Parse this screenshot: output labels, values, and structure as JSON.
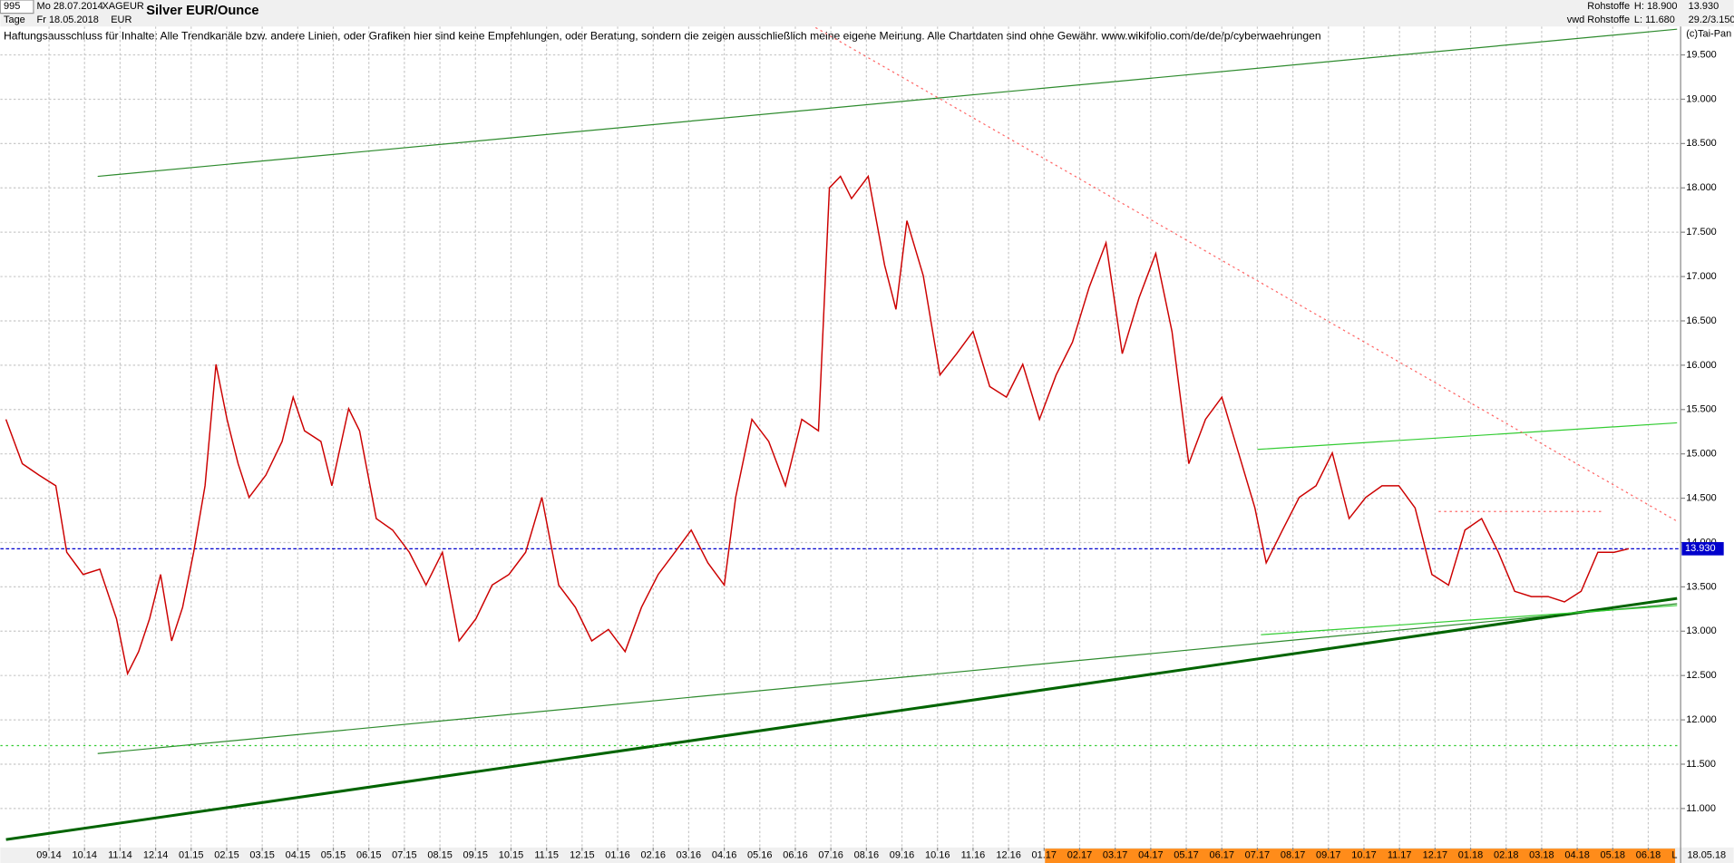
{
  "header": {
    "id": "995",
    "period": "Tage",
    "date_from": "Mo 28.07.2014",
    "date_to": "Fr 18.05.2018",
    "symbol": "XAGEUR",
    "currency": "EUR",
    "group": "Rohstoffe",
    "source": "vwd Rohstoffe",
    "high": "H: 18.900",
    "low": "L: 11.680",
    "last": "13.930",
    "info": "29.2/3.150",
    "copyright": "(c)Tai-Pan",
    "end_date": "18.05.18",
    "scale": "L"
  },
  "chart_data": {
    "type": "line",
    "title": "Silver EUR/Ounce",
    "annotation": "Haftungsausschluss für Inhalte: Alle Trendkanäle bzw. andere Linien, oder Grafiken hier sind keine Empfehlungen, oder Beratung, sondern die zeigen ausschließlich meine eigene Meinung. Alle Chartdaten sind ohne Gewähr.  www.wikifolio.com/de/de/p/cyberwaehrungen",
    "color": "#cc0000",
    "x": [
      -1.21,
      -0.75,
      -0.28,
      0.19,
      0.5,
      0.96,
      1.43,
      1.9,
      2.21,
      2.52,
      2.83,
      3.14,
      3.45,
      3.76,
      4.07,
      4.39,
      4.7,
      5.01,
      5.32,
      5.63,
      6.1,
      6.56,
      6.87,
      7.19,
      7.65,
      7.96,
      8.43,
      8.74,
      9.21,
      9.67,
      10.14,
      10.61,
      11.07,
      11.54,
      12.01,
      12.47,
      12.94,
      13.41,
      13.87,
      14.34,
      14.81,
      15.27,
      15.74,
      16.21,
      16.67,
      17.14,
      17.61,
      18.07,
      18.54,
      19.0,
      19.32,
      19.78,
      20.25,
      20.72,
      21.18,
      21.65,
      21.96,
      22.27,
      22.58,
      23.05,
      23.51,
      23.83,
      24.14,
      24.6,
      25.07,
      25.54,
      26.0,
      26.47,
      26.94,
      27.4,
      27.87,
      28.34,
      28.8,
      29.27,
      29.74,
      30.2,
      30.67,
      31.14,
      31.6,
      32.07,
      32.54,
      33.0,
      33.47,
      33.93,
      34.25,
      34.71,
      35.18,
      35.65,
      36.11,
      36.58,
      37.05,
      37.51,
      37.98,
      38.44,
      38.91,
      39.38,
      39.84,
      40.31,
      40.78,
      41.24,
      41.71,
      42.18,
      42.64,
      43.11,
      43.58,
      44.04,
      44.45
    ],
    "values": [
      15.39,
      14.89,
      14.76,
      14.64,
      13.89,
      13.64,
      13.7,
      13.14,
      12.52,
      12.77,
      13.14,
      13.64,
      12.89,
      13.27,
      13.89,
      14.64,
      16.01,
      15.39,
      14.89,
      14.51,
      14.76,
      15.14,
      15.64,
      15.26,
      15.14,
      14.64,
      15.51,
      15.26,
      14.27,
      14.14,
      13.89,
      13.52,
      13.89,
      12.89,
      13.14,
      13.52,
      13.64,
      13.89,
      14.51,
      13.52,
      13.27,
      12.89,
      13.02,
      12.77,
      13.27,
      13.64,
      13.89,
      14.14,
      13.77,
      13.52,
      14.51,
      15.39,
      15.14,
      14.64,
      15.39,
      15.26,
      18.0,
      18.13,
      17.88,
      18.13,
      17.13,
      16.63,
      17.63,
      17.01,
      15.89,
      16.13,
      16.38,
      15.76,
      15.64,
      16.01,
      15.39,
      15.89,
      16.26,
      16.88,
      17.38,
      16.13,
      16.76,
      17.26,
      16.38,
      14.89,
      15.39,
      15.64,
      15.01,
      14.39,
      13.77,
      14.14,
      14.51,
      14.64,
      15.01,
      14.27,
      14.51,
      14.64,
      14.64,
      14.39,
      13.64,
      13.52,
      14.14,
      14.27,
      13.89,
      13.45,
      13.39,
      13.39,
      13.33,
      13.45,
      13.89,
      13.89,
      13.93
    ],
    "last": {
      "value": 13.93,
      "label": "13.930"
    },
    "last_color": "#0000cc",
    "trendlines": [
      {
        "color": "#2e8b2e",
        "style": "thin",
        "x": [
          1.37,
          45.81
        ],
        "y": [
          18.13,
          19.79
        ]
      },
      {
        "color": "#2e8b2e",
        "style": "thin",
        "x": [
          1.37,
          45.81
        ],
        "y": [
          11.62,
          13.31
        ]
      },
      {
        "color": "#006400",
        "style": "thick",
        "x": [
          -1.21,
          45.81
        ],
        "y": [
          10.65,
          13.37
        ]
      },
      {
        "color": "#33cc33",
        "style": "thin",
        "x": [
          34.0,
          45.81
        ],
        "y": [
          15.05,
          15.35
        ]
      },
      {
        "color": "#33cc33",
        "style": "thin",
        "x": [
          34.1,
          45.81
        ],
        "y": [
          12.96,
          13.29
        ]
      },
      {
        "color": "#ff6666",
        "style": "dotted",
        "x": [
          21.3,
          45.81
        ],
        "y": [
          19.87,
          14.24
        ]
      },
      {
        "color": "#33cc33",
        "style": "dotted",
        "x": [
          -1.37,
          45.91
        ],
        "y": [
          11.71,
          11.71
        ]
      },
      {
        "color": "#ff6666",
        "style": "dotted",
        "x": [
          39.1,
          43.7
        ],
        "y": [
          14.35,
          14.35
        ]
      }
    ],
    "xlim": [
      -1.37,
      45.91
    ],
    "ylim": [
      10.56,
      19.82
    ],
    "grid": true,
    "xticks": [
      {
        "value": 0,
        "label": "09.14"
      },
      {
        "value": 1,
        "label": "10.14"
      },
      {
        "value": 2,
        "label": "11.14"
      },
      {
        "value": 3,
        "label": "12.14"
      },
      {
        "value": 4,
        "label": "01.15"
      },
      {
        "value": 5,
        "label": "02.15"
      },
      {
        "value": 6,
        "label": "03.15"
      },
      {
        "value": 7,
        "label": "04.15"
      },
      {
        "value": 8,
        "label": "05.15"
      },
      {
        "value": 9,
        "label": "06.15"
      },
      {
        "value": 10,
        "label": "07.15"
      },
      {
        "value": 11,
        "label": "08.15"
      },
      {
        "value": 12,
        "label": "09.15"
      },
      {
        "value": 13,
        "label": "10.15"
      },
      {
        "value": 14,
        "label": "11.15"
      },
      {
        "value": 15,
        "label": "12.15"
      },
      {
        "value": 16,
        "label": "01.16"
      },
      {
        "value": 17,
        "label": "02.16"
      },
      {
        "value": 18,
        "label": "03.16"
      },
      {
        "value": 19,
        "label": "04.16"
      },
      {
        "value": 20,
        "label": "05.16"
      },
      {
        "value": 21,
        "label": "06.16"
      },
      {
        "value": 22,
        "label": "07.16"
      },
      {
        "value": 23,
        "label": "08.16"
      },
      {
        "value": 24,
        "label": "09.16"
      },
      {
        "value": 25,
        "label": "10.16"
      },
      {
        "value": 26,
        "label": "11.16"
      },
      {
        "value": 27,
        "label": "12.16"
      },
      {
        "value": 28,
        "label": "01.17"
      },
      {
        "value": 29,
        "label": "02.17"
      },
      {
        "value": 30,
        "label": "03.17"
      },
      {
        "value": 31,
        "label": "04.17"
      },
      {
        "value": 32,
        "label": "05.17"
      },
      {
        "value": 33,
        "label": "06.17"
      },
      {
        "value": 34,
        "label": "07.17"
      },
      {
        "value": 35,
        "label": "08.17"
      },
      {
        "value": 36,
        "label": "09.17"
      },
      {
        "value": 37,
        "label": "10.17"
      },
      {
        "value": 38,
        "label": "11.17"
      },
      {
        "value": 39,
        "label": "12.17"
      },
      {
        "value": 40,
        "label": "01.18"
      },
      {
        "value": 41,
        "label": "02.18"
      },
      {
        "value": 42,
        "label": "03.18"
      },
      {
        "value": 43,
        "label": "04.18"
      },
      {
        "value": 44,
        "label": "05.18"
      },
      {
        "value": 45,
        "label": "06.18"
      }
    ],
    "yticks": [
      {
        "value": 11,
        "label": "11.000"
      },
      {
        "value": 11.5,
        "label": "11.500"
      },
      {
        "value": 12,
        "label": "12.000"
      },
      {
        "value": 12.5,
        "label": "12.500"
      },
      {
        "value": 13,
        "label": "13.000"
      },
      {
        "value": 13.5,
        "label": "13.500"
      },
      {
        "value": 14,
        "label": "14.000"
      },
      {
        "value": 14.5,
        "label": "14.500"
      },
      {
        "value": 15,
        "label": "15.000"
      },
      {
        "value": 15.5,
        "label": "15.500"
      },
      {
        "value": 16,
        "label": "16.000"
      },
      {
        "value": 16.5,
        "label": "16.500"
      },
      {
        "value": 17,
        "label": "17.000"
      },
      {
        "value": 17.5,
        "label": "17.500"
      },
      {
        "value": 18,
        "label": "18.000"
      },
      {
        "value": 18.5,
        "label": "18.500"
      },
      {
        "value": 19,
        "label": "19.000"
      },
      {
        "value": 19.5,
        "label": "19.500"
      }
    ]
  }
}
